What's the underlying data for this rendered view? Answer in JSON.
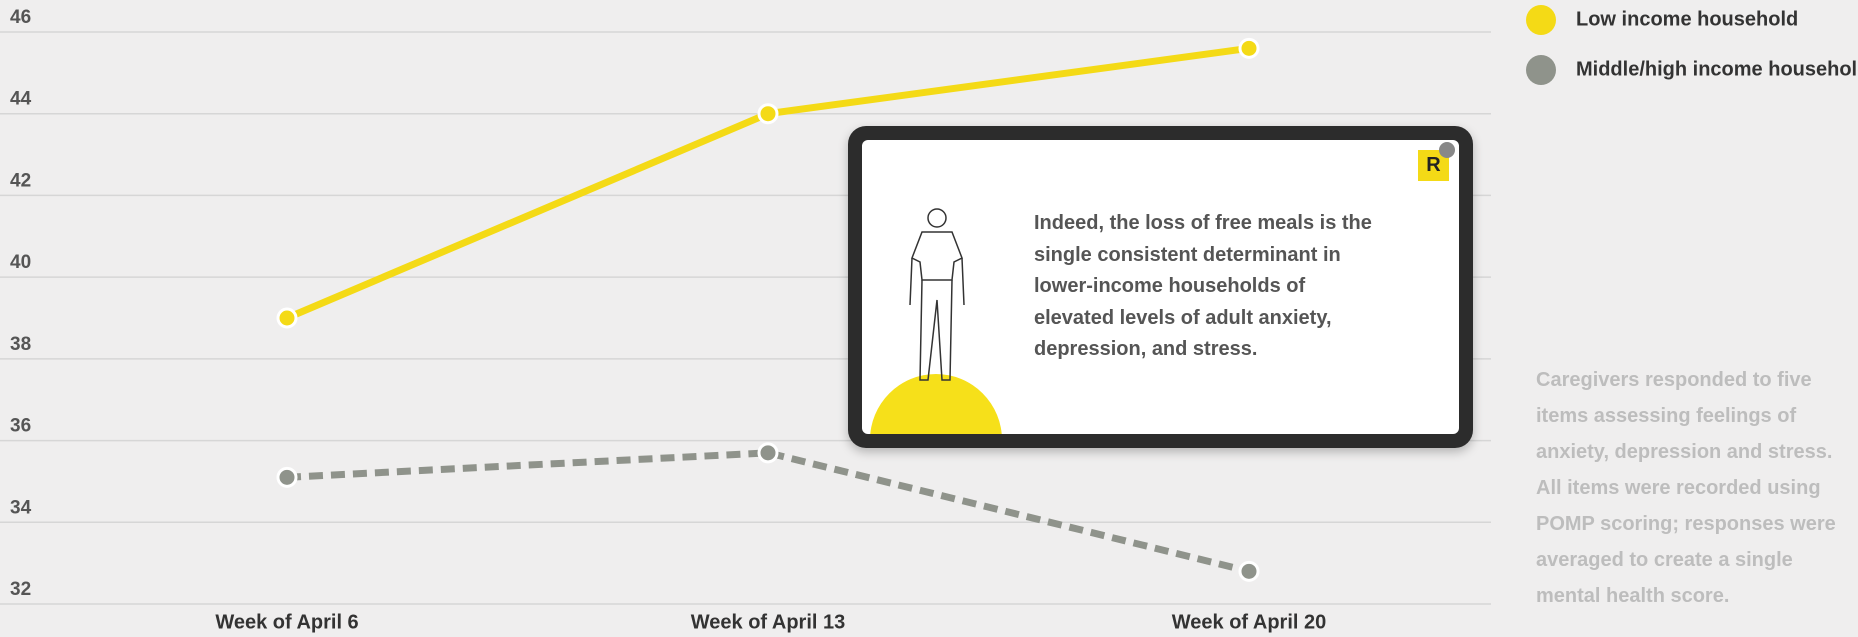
{
  "chart_data": {
    "type": "line",
    "categories": [
      "Week of April 6",
      "Week of April 13",
      "Week of April 20"
    ],
    "series": [
      {
        "name": "Low income household",
        "color": "#f4da16",
        "values": [
          39,
          44,
          45.6
        ],
        "dashed": false
      },
      {
        "name": "Middle/high income household",
        "color": "#8f938b",
        "values": [
          35.1,
          35.7,
          32.8
        ],
        "dashed": true
      }
    ],
    "ylim": [
      32,
      46
    ],
    "yticks": [
      32,
      34,
      36,
      38,
      40,
      42,
      44,
      46
    ],
    "grid": true
  },
  "note": "Caregivers responded to five items assessing feelings of anxiety, depression and stress. All items were recorded using POMP scoring; responses were averaged to create a single mental health score.",
  "popup": {
    "badge": "R",
    "text": "Indeed, the loss of free meals is the single consistent determinant in lower-income households of elevated levels of adult anxiety, depression, and stress."
  }
}
